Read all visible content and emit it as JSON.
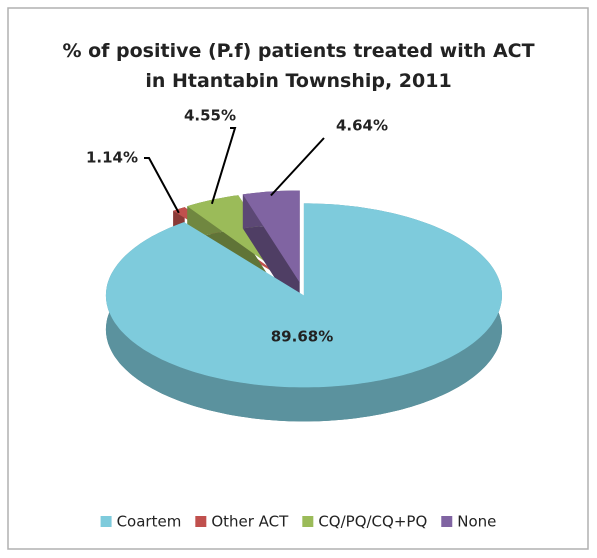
{
  "chart_data": {
    "type": "pie",
    "title": "% of positive (P.f) patients treated with ACT in Htantabin Township, 2011",
    "categories": [
      "Coartem",
      "Other ACT",
      "CQ/PQ/CQ+PQ",
      "None"
    ],
    "values": [
      89.68,
      1.14,
      4.55,
      4.64
    ],
    "value_labels": [
      "89.68%",
      "1.14%",
      "4.55%",
      "4.64%"
    ],
    "colors": [
      "#7ecbdc",
      "#c0504d",
      "#9bbb59",
      "#8064a2"
    ],
    "legend": "bottom"
  }
}
